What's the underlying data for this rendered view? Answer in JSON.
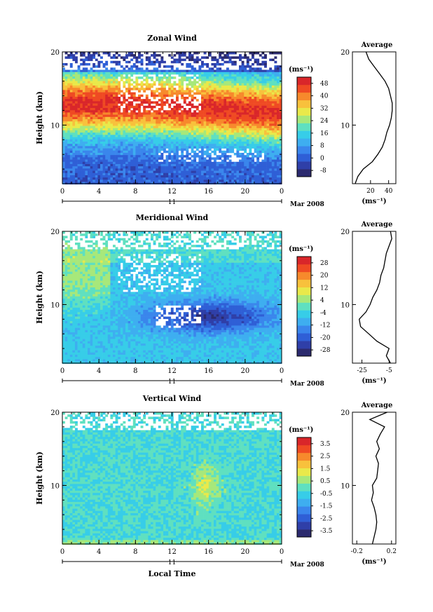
{
  "figure": {
    "xlabel": "Local Time",
    "date_label": "Mar 2008",
    "day_label": "11"
  },
  "chart_data": [
    {
      "type": "heatmap",
      "title": "Zonal Wind",
      "ylabel": "Height (km)",
      "xlabel": "",
      "x_ticks": [
        "0",
        "4",
        "8",
        "12",
        "16",
        "20",
        "0"
      ],
      "y_ticks": [
        "10",
        "20"
      ],
      "xlim": [
        0,
        24
      ],
      "ylim": [
        2,
        20
      ],
      "colorbar": {
        "unit": "(ms⁻¹)",
        "ticks": [
          "48",
          "40",
          "32",
          "24",
          "16",
          "8",
          "0",
          "-8"
        ],
        "range": [
          -12,
          52
        ]
      },
      "average_profile": {
        "title": "Average",
        "x_ticks": [
          "20",
          "40"
        ],
        "xlim": [
          0,
          48
        ],
        "unit": "(ms⁻¹)",
        "y_ticks": [
          "10",
          "20"
        ],
        "height": [
          2,
          3,
          4,
          5,
          6,
          7,
          8,
          9,
          10,
          11,
          12,
          13,
          14,
          15,
          16,
          17,
          18,
          19,
          20
        ],
        "value": [
          3,
          6,
          12,
          22,
          28,
          33,
          36,
          38,
          41,
          43,
          44,
          44,
          42,
          40,
          36,
          30,
          24,
          18,
          15
        ]
      }
    },
    {
      "type": "heatmap",
      "title": "Meridional Wind",
      "ylabel": "Height (km)",
      "xlabel": "",
      "x_ticks": [
        "0",
        "4",
        "8",
        "12",
        "16",
        "20",
        "0"
      ],
      "y_ticks": [
        "10",
        "20"
      ],
      "xlim": [
        0,
        24
      ],
      "ylim": [
        2,
        20
      ],
      "colorbar": {
        "unit": "(ms⁻¹)",
        "ticks": [
          "28",
          "20",
          "12",
          "4",
          "-4",
          "-12",
          "-20",
          "-28"
        ],
        "range": [
          -32,
          32
        ]
      },
      "average_profile": {
        "title": "Average",
        "x_ticks": [
          "-25",
          "-5"
        ],
        "xlim": [
          -32,
          0
        ],
        "unit": "(ms⁻¹)",
        "y_ticks": [
          "10",
          "20"
        ],
        "height": [
          2,
          3,
          4,
          5,
          6,
          7,
          8,
          9,
          10,
          11,
          12,
          13,
          14,
          15,
          16,
          17,
          18,
          19,
          20
        ],
        "value": [
          -4,
          -7,
          -5,
          -14,
          -20,
          -26,
          -27,
          -22,
          -19,
          -17,
          -14,
          -12,
          -11,
          -9,
          -8,
          -7,
          -5,
          -3,
          -4
        ]
      }
    },
    {
      "type": "heatmap",
      "title": "Vertical Wind",
      "ylabel": "Height (km)",
      "xlabel": "Local Time",
      "x_ticks": [
        "0",
        "4",
        "8",
        "12",
        "16",
        "20",
        "0"
      ],
      "y_ticks": [
        "10",
        "20"
      ],
      "xlim": [
        0,
        24
      ],
      "ylim": [
        2,
        20
      ],
      "colorbar": {
        "unit": "(ms⁻¹)",
        "ticks": [
          "3.5",
          "2.5",
          "1.5",
          "0.5",
          "-0.5",
          "-1.5",
          "-2.5",
          "-3.5"
        ],
        "range": [
          -4,
          4
        ]
      },
      "average_profile": {
        "title": "Average",
        "x_ticks": [
          "-0.2",
          "0.2"
        ],
        "xlim": [
          -0.25,
          0.25
        ],
        "unit": "(ms⁻¹)",
        "y_ticks": [
          "10",
          "20"
        ],
        "height": [
          2,
          3,
          4,
          5,
          6,
          7,
          8,
          9,
          10,
          11,
          12,
          13,
          14,
          15,
          16,
          17,
          18,
          19,
          20
        ],
        "value": [
          -0.02,
          0.0,
          0.02,
          0.03,
          0.02,
          0.0,
          -0.03,
          -0.01,
          -0.02,
          0.03,
          0.04,
          0.05,
          0.02,
          0.06,
          0.03,
          0.07,
          0.12,
          -0.05,
          0.15
        ]
      }
    }
  ]
}
